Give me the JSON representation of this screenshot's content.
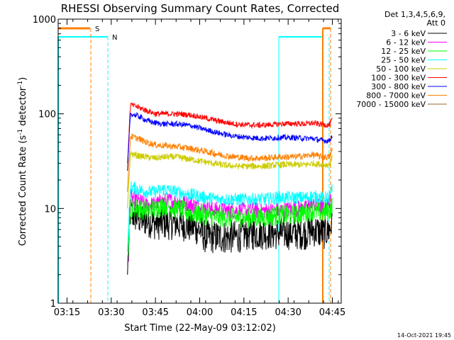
{
  "chart_data": {
    "type": "line",
    "title": "RHESSI Observing Summary Count Rates, Corrected",
    "ylabel_text": "Corrected Count Rate (s",
    "ylabel_sup1": "-1",
    "ylabel_mid": " detector",
    "ylabel_sup2": "-1",
    "ylabel_end": ")",
    "xlabel": "Start Time (22-May-09 03:12:02)",
    "y_scale": "log",
    "ylim": [
      1,
      1000
    ],
    "xlim_minutes_after_0312": [
      0,
      96
    ],
    "x_ticks": [
      {
        "label": "03:15",
        "minutes": 3
      },
      {
        "label": "03:30",
        "minutes": 18
      },
      {
        "label": "03:45",
        "minutes": 33
      },
      {
        "label": "04:00",
        "minutes": 48
      },
      {
        "label": "04:15",
        "minutes": 63
      },
      {
        "label": "04:30",
        "minutes": 78
      },
      {
        "label": "04:45",
        "minutes": 93
      }
    ],
    "y_ticks": [
      {
        "label": "1000",
        "value": 1000
      },
      {
        "label": "100",
        "value": 100
      },
      {
        "label": "10",
        "value": 10
      },
      {
        "label": "1",
        "value": 1
      }
    ],
    "legend_header": [
      "Det 1,3,4,5,6,9,",
      "Att 0"
    ],
    "legend_placement": "right",
    "series": [
      {
        "name": "3 - 6 keV",
        "color": "#000000",
        "points": [
          [
            23.5,
            2.0
          ],
          [
            24.5,
            9
          ],
          [
            27,
            8
          ],
          [
            30,
            7.5
          ],
          [
            33,
            7
          ],
          [
            36,
            7
          ],
          [
            40,
            7
          ],
          [
            45,
            6.5
          ],
          [
            48,
            6
          ],
          [
            50,
            5
          ],
          [
            55,
            5
          ],
          [
            60,
            5
          ],
          [
            65,
            5.5
          ],
          [
            70,
            5.5
          ],
          [
            75,
            5.5
          ],
          [
            80,
            5.5
          ],
          [
            84,
            5.5
          ],
          [
            86,
            6
          ],
          [
            90,
            5.5
          ],
          [
            92,
            6
          ],
          [
            93,
            7
          ]
        ]
      },
      {
        "name": "6 - 12 keV",
        "color": "#ff00ff",
        "points": [
          [
            23.5,
            2.5
          ],
          [
            24.5,
            13
          ],
          [
            27,
            12
          ],
          [
            30,
            11
          ],
          [
            33,
            11
          ],
          [
            36,
            12
          ],
          [
            40,
            12
          ],
          [
            45,
            11
          ],
          [
            50,
            10
          ],
          [
            55,
            9.5
          ],
          [
            60,
            9.5
          ],
          [
            65,
            9.5
          ],
          [
            70,
            9.5
          ],
          [
            75,
            9.5
          ],
          [
            80,
            10
          ],
          [
            84,
            10
          ],
          [
            86,
            11
          ],
          [
            90,
            10
          ],
          [
            92,
            11
          ],
          [
            93,
            13
          ]
        ]
      },
      {
        "name": "12 - 25 keV",
        "color": "#00ff00",
        "points": [
          [
            23.5,
            3.0
          ],
          [
            24.5,
            10.5
          ],
          [
            27,
            10
          ],
          [
            30,
            9.5
          ],
          [
            33,
            10
          ],
          [
            36,
            11
          ],
          [
            40,
            10
          ],
          [
            45,
            9
          ],
          [
            50,
            8.5
          ],
          [
            55,
            8
          ],
          [
            60,
            8
          ],
          [
            65,
            8
          ],
          [
            70,
            8
          ],
          [
            75,
            8.5
          ],
          [
            80,
            8.5
          ],
          [
            84,
            9
          ],
          [
            86,
            9.5
          ],
          [
            90,
            9
          ],
          [
            92,
            9.5
          ],
          [
            93,
            11
          ]
        ]
      },
      {
        "name": "25 - 50 keV",
        "color": "#00ffff",
        "points": [
          [
            23.5,
            3.5
          ],
          [
            24.5,
            17
          ],
          [
            27,
            16
          ],
          [
            30,
            15
          ],
          [
            33,
            15
          ],
          [
            36,
            16
          ],
          [
            40,
            15
          ],
          [
            45,
            14
          ],
          [
            50,
            13
          ],
          [
            55,
            12.5
          ],
          [
            60,
            12.5
          ],
          [
            65,
            12.5
          ],
          [
            70,
            12.5
          ],
          [
            75,
            13
          ],
          [
            80,
            13
          ],
          [
            84,
            13
          ],
          [
            86,
            13.5
          ],
          [
            90,
            13
          ],
          [
            92,
            13
          ],
          [
            93,
            16
          ]
        ]
      },
      {
        "name": "50 - 100 keV",
        "color": "#cccc00",
        "points": [
          [
            23.5,
            10
          ],
          [
            24.5,
            38
          ],
          [
            27,
            36
          ],
          [
            30,
            35
          ],
          [
            33,
            34
          ],
          [
            36,
            35
          ],
          [
            40,
            35
          ],
          [
            45,
            33
          ],
          [
            50,
            31
          ],
          [
            55,
            29
          ],
          [
            60,
            28
          ],
          [
            65,
            28
          ],
          [
            70,
            28
          ],
          [
            75,
            29
          ],
          [
            80,
            29
          ],
          [
            84,
            29
          ],
          [
            86,
            30
          ],
          [
            90,
            29
          ],
          [
            92,
            29
          ],
          [
            93,
            35
          ]
        ]
      },
      {
        "name": "100 - 300 keV",
        "color": "#ff0000",
        "points": [
          [
            23.5,
            30
          ],
          [
            24.5,
            125
          ],
          [
            27,
            118
          ],
          [
            30,
            108
          ],
          [
            33,
            100
          ],
          [
            36,
            100
          ],
          [
            40,
            100
          ],
          [
            45,
            97
          ],
          [
            50,
            90
          ],
          [
            55,
            83
          ],
          [
            60,
            78
          ],
          [
            65,
            76
          ],
          [
            70,
            76
          ],
          [
            75,
            78
          ],
          [
            80,
            79
          ],
          [
            84,
            78
          ],
          [
            86,
            80
          ],
          [
            90,
            77
          ],
          [
            92,
            76
          ],
          [
            93,
            88
          ]
        ]
      },
      {
        "name": "300 - 800 keV",
        "color": "#0000ff",
        "points": [
          [
            23.5,
            25
          ],
          [
            24.5,
            100
          ],
          [
            27,
            95
          ],
          [
            30,
            85
          ],
          [
            33,
            80
          ],
          [
            36,
            78
          ],
          [
            40,
            78
          ],
          [
            45,
            75
          ],
          [
            50,
            68
          ],
          [
            55,
            62
          ],
          [
            60,
            58
          ],
          [
            65,
            56
          ],
          [
            70,
            55
          ],
          [
            75,
            56
          ],
          [
            80,
            56
          ],
          [
            84,
            55
          ],
          [
            86,
            55
          ],
          [
            90,
            52
          ],
          [
            92,
            52
          ],
          [
            93,
            60
          ]
        ]
      },
      {
        "name": "800 - 7000 keV",
        "color": "#ff8000",
        "points": [
          [
            23.5,
            15
          ],
          [
            24.5,
            58
          ],
          [
            27,
            55
          ],
          [
            30,
            50
          ],
          [
            33,
            47
          ],
          [
            36,
            46
          ],
          [
            40,
            45
          ],
          [
            45,
            43
          ],
          [
            50,
            40
          ],
          [
            55,
            37
          ],
          [
            60,
            35
          ],
          [
            65,
            34
          ],
          [
            70,
            34
          ],
          [
            75,
            35
          ],
          [
            80,
            35
          ],
          [
            84,
            36
          ],
          [
            86,
            37
          ],
          [
            90,
            35
          ],
          [
            92,
            35
          ],
          [
            93,
            42
          ]
        ]
      },
      {
        "name": "7000 - 15000 keV",
        "color": "#996633",
        "points": []
      }
    ],
    "attenuator_flag": {
      "label": "S",
      "color": "#ff8000",
      "level": 800
    },
    "night_flag": {
      "label": "N",
      "color": "#00ffff",
      "level": 650
    },
    "timestamp": "14-Oct-2021 19:45"
  }
}
